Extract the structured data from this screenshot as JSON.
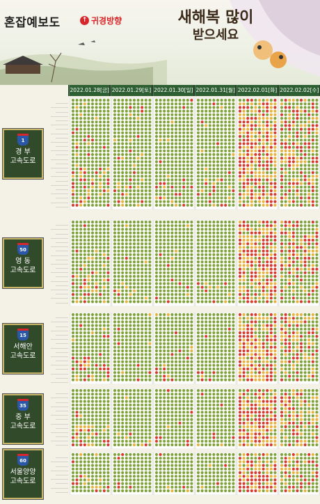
{
  "header": {
    "title": "혼잡예보도",
    "subtitle": "귀경방향",
    "greeting_line1": "새해복 많이",
    "greeting_line2": "받으세요"
  },
  "dates": [
    "2022.01.28[금]",
    "2022.01.29[토]",
    "2022.01.30[일]",
    "2022.01.31[월]",
    "2022.02.01[화]",
    "2022.02.02[수]"
  ],
  "colors": {
    "smooth": "#7fa33a",
    "slow": "#e7b23e",
    "congested": "#d73a2f"
  },
  "sections": [
    {
      "route": "1",
      "name1": "경 부",
      "name2": "고속도로",
      "rows": 30,
      "icon": "expressway-shield-icon"
    },
    {
      "route": "50",
      "name1": "영 동",
      "name2": "고속도로",
      "rows": 23,
      "icon": "expressway-shield-icon"
    },
    {
      "route": "15",
      "name1": "서해안",
      "name2": "고속도로",
      "rows": 19,
      "icon": "expressway-shield-icon"
    },
    {
      "route": "35",
      "name1": "중 부",
      "name2": "고속도로",
      "rows": 16,
      "icon": "expressway-shield-icon"
    },
    {
      "route": "60",
      "name1": "서울양양",
      "name2": "고속도로",
      "rows": 11,
      "icon": "expressway-shield-icon"
    }
  ]
}
